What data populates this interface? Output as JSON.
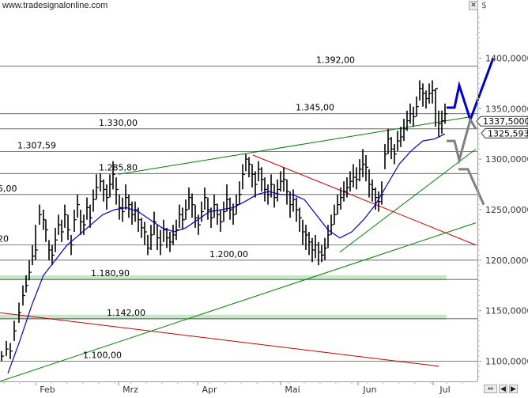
{
  "source_label": "www.tradesignalonline.com",
  "currency_symbol": "$",
  "close_button_glyph": "✕",
  "scroll_buttons": [
    "⇔",
    "◀",
    "▶"
  ],
  "chart_data": {
    "type": "line",
    "title": "",
    "xlabel": "",
    "ylabel": "",
    "x_ticks": [
      "Feb",
      "Mrz",
      "Apr",
      "Mai",
      "Jun",
      "Jul"
    ],
    "y_ticks": [
      "1100,0000",
      "1150,0000",
      "1200,0000",
      "1250,0000",
      "1300,0000",
      "1350,0000",
      "1400,0000"
    ],
    "ylim": [
      1080,
      1445
    ],
    "grid": false,
    "price_markers": [
      {
        "value": "1337,5000",
        "level": 1337.5
      },
      {
        "value": "1325,593",
        "level": 1325.593
      }
    ],
    "horizontal_levels": [
      {
        "label": "1.392,00",
        "value": 1392.0
      },
      {
        "label": "1.345,00",
        "value": 1345.0
      },
      {
        "label": "1.330,00",
        "value": 1330.0
      },
      {
        "label": "1.307,59",
        "value": 1307.59
      },
      {
        "label": "1.285,80",
        "value": 1285.8
      },
      {
        "label": "5,00",
        "value": 1265.0
      },
      {
        "label": "20",
        "value": 1215.0
      },
      {
        "label": "1.200,00",
        "value": 1200.0
      },
      {
        "label": "1.180,90",
        "value": 1180.9
      },
      {
        "label": "1.142,00",
        "value": 1142.0
      },
      {
        "label": "1.100,00",
        "value": 1100.0
      }
    ],
    "highlight_bands": [
      {
        "from": 1180.0,
        "to": 1185.0
      },
      {
        "from": 1141.0,
        "to": 1146.0
      }
    ],
    "trend_lines": [
      {
        "color": "#cc0000",
        "points": [
          [
            0,
            1148
          ],
          [
            555,
            1095
          ]
        ]
      },
      {
        "color": "#cc0000",
        "points": [
          [
            320,
            1304
          ],
          [
            602,
            1215
          ]
        ]
      },
      {
        "color": "#008000",
        "points": [
          [
            0,
            1080
          ],
          [
            602,
            1237
          ]
        ]
      },
      {
        "color": "#008000",
        "points": [
          [
            150,
            1285
          ],
          [
            596,
            1342
          ]
        ]
      },
      {
        "color": "#008000",
        "points": [
          [
            430,
            1208
          ],
          [
            602,
            1310
          ]
        ]
      }
    ],
    "projections": [
      {
        "color": "#0000cc",
        "points": [
          [
            565,
            1351
          ],
          [
            575,
            1351
          ],
          [
            581,
            1373
          ],
          [
            595,
            1339
          ],
          [
            624,
            1400
          ]
        ]
      },
      {
        "color": "#808080",
        "points": [
          [
            565,
            1318
          ],
          [
            575,
            1318
          ],
          [
            581,
            1299
          ],
          [
            595,
            1339
          ],
          [
            602,
            1330
          ]
        ]
      },
      {
        "color": "#808080",
        "points": [
          [
            580,
            1290
          ],
          [
            592,
            1290
          ],
          [
            612,
            1255
          ]
        ]
      }
    ],
    "series": [
      {
        "type": "ohlc",
        "color": "#000000",
        "x": [
          2,
          8,
          13,
          18,
          24,
          29,
          33,
          37,
          41,
          45,
          50,
          55,
          58,
          62,
          66,
          70,
          74,
          78,
          82,
          86,
          90,
          94,
          98,
          102,
          106,
          110,
          114,
          118,
          122,
          127,
          131,
          135,
          139,
          143,
          147,
          151,
          155,
          159,
          163,
          167,
          171,
          175,
          179,
          183,
          187,
          191,
          195,
          199,
          203,
          207,
          211,
          215,
          219,
          223,
          227,
          231,
          235,
          239,
          243,
          247,
          251,
          255,
          259,
          263,
          267,
          271,
          275,
          279,
          283,
          287,
          291,
          295,
          299,
          303,
          307,
          311,
          315,
          319,
          323,
          327,
          331,
          335,
          339,
          343,
          347,
          351,
          355,
          359,
          363,
          367,
          371,
          375,
          379,
          383,
          387,
          391,
          395,
          399,
          403,
          407,
          411,
          415,
          419,
          423,
          427,
          431,
          435,
          439,
          443,
          447,
          451,
          455,
          459,
          463,
          467,
          471,
          475,
          479,
          483,
          487,
          491,
          495,
          499,
          503,
          507,
          511,
          515,
          519,
          523,
          527,
          531,
          535,
          539,
          543,
          547,
          551,
          555,
          559,
          563
        ],
        "close": [
          1105,
          1112,
          1110,
          1130,
          1148,
          1165,
          1175,
          1188,
          1204,
          1210,
          1245,
          1240,
          1230,
          1210,
          1205,
          1220,
          1235,
          1228,
          1245,
          1230,
          1215,
          1240,
          1255,
          1238,
          1235,
          1252,
          1242,
          1260,
          1272,
          1278,
          1270,
          1262,
          1275,
          1285,
          1270,
          1252,
          1248,
          1262,
          1255,
          1245,
          1250,
          1240,
          1232,
          1228,
          1212,
          1225,
          1238,
          1222,
          1215,
          1230,
          1222,
          1218,
          1225,
          1230,
          1245,
          1240,
          1250,
          1262,
          1255,
          1242,
          1235,
          1248,
          1262,
          1250,
          1242,
          1255,
          1245,
          1238,
          1248,
          1260,
          1250,
          1245,
          1255,
          1265,
          1285,
          1300,
          1295,
          1285,
          1275,
          1290,
          1280,
          1270,
          1265,
          1275,
          1262,
          1270,
          1278,
          1280,
          1268,
          1255,
          1260,
          1250,
          1242,
          1228,
          1225,
          1218,
          1210,
          1215,
          1208,
          1205,
          1212,
          1225,
          1235,
          1245,
          1255,
          1262,
          1268,
          1272,
          1278,
          1282,
          1280,
          1290,
          1295,
          1292,
          1275,
          1270,
          1262,
          1258,
          1265,
          1305,
          1320,
          1310,
          1305,
          1318,
          1322,
          1330,
          1338,
          1345,
          1342,
          1352,
          1370,
          1365,
          1360,
          1365,
          1368,
          1370,
          1335,
          1338,
          1345
        ],
        "high": [
          1110,
          1120,
          1118,
          1140,
          1158,
          1175,
          1185,
          1200,
          1215,
          1235,
          1255,
          1250,
          1240,
          1220,
          1215,
          1232,
          1245,
          1240,
          1255,
          1245,
          1225,
          1250,
          1265,
          1250,
          1245,
          1262,
          1255,
          1270,
          1285,
          1286,
          1280,
          1275,
          1285,
          1298,
          1282,
          1265,
          1262,
          1275,
          1265,
          1258,
          1258,
          1252,
          1242,
          1238,
          1225,
          1235,
          1248,
          1235,
          1230,
          1240,
          1232,
          1228,
          1235,
          1240,
          1255,
          1252,
          1260,
          1272,
          1266,
          1255,
          1245,
          1258,
          1272,
          1262,
          1252,
          1265,
          1256,
          1250,
          1258,
          1275,
          1262,
          1256,
          1265,
          1278,
          1295,
          1305,
          1302,
          1295,
          1288,
          1298,
          1292,
          1282,
          1275,
          1285,
          1275,
          1280,
          1288,
          1292,
          1280,
          1268,
          1270,
          1262,
          1252,
          1240,
          1235,
          1228,
          1222,
          1225,
          1218,
          1215,
          1222,
          1235,
          1245,
          1255,
          1265,
          1272,
          1278,
          1282,
          1288,
          1295,
          1292,
          1300,
          1310,
          1304,
          1290,
          1280,
          1272,
          1268,
          1278,
          1315,
          1330,
          1322,
          1315,
          1328,
          1332,
          1340,
          1348,
          1355,
          1352,
          1362,
          1378,
          1375,
          1368,
          1375,
          1378,
          1370,
          1348,
          1348,
          1355
        ],
        "low": [
          1100,
          1105,
          1102,
          1120,
          1138,
          1155,
          1168,
          1180,
          1195,
          1200,
          1235,
          1230,
          1218,
          1200,
          1195,
          1208,
          1225,
          1218,
          1232,
          1220,
          1205,
          1228,
          1242,
          1225,
          1225,
          1240,
          1232,
          1248,
          1260,
          1268,
          1258,
          1250,
          1262,
          1270,
          1255,
          1240,
          1238,
          1250,
          1242,
          1235,
          1238,
          1228,
          1222,
          1215,
          1205,
          1210,
          1225,
          1210,
          1205,
          1218,
          1212,
          1208,
          1215,
          1220,
          1232,
          1230,
          1240,
          1250,
          1242,
          1232,
          1225,
          1238,
          1250,
          1240,
          1232,
          1242,
          1235,
          1228,
          1238,
          1248,
          1240,
          1235,
          1245,
          1255,
          1270,
          1288,
          1282,
          1272,
          1262,
          1278,
          1268,
          1258,
          1255,
          1262,
          1252,
          1258,
          1268,
          1268,
          1255,
          1242,
          1248,
          1238,
          1228,
          1215,
          1210,
          1205,
          1198,
          1202,
          1195,
          1198,
          1200,
          1212,
          1225,
          1235,
          1245,
          1250,
          1258,
          1262,
          1268,
          1272,
          1270,
          1278,
          1282,
          1278,
          1262,
          1258,
          1250,
          1248,
          1255,
          1290,
          1305,
          1300,
          1295,
          1308,
          1312,
          1318,
          1328,
          1335,
          1332,
          1342,
          1358,
          1352,
          1350,
          1355,
          1355,
          1332,
          1322,
          1325,
          1335
        ]
      },
      {
        "name": "",
        "type": "line",
        "color": "#0000cc",
        "x": [
          10,
          25,
          40,
          55,
          70,
          85,
          100,
          115,
          130,
          145,
          160,
          175,
          190,
          205,
          220,
          235,
          250,
          265,
          280,
          295,
          310,
          325,
          340,
          355,
          370,
          385,
          400,
          415,
          430,
          445,
          460,
          475,
          490,
          505,
          520,
          535,
          550,
          563
        ],
        "y": [
          1088,
          1120,
          1155,
          1185,
          1200,
          1215,
          1225,
          1235,
          1245,
          1250,
          1252,
          1248,
          1240,
          1232,
          1228,
          1232,
          1240,
          1248,
          1250,
          1252,
          1258,
          1265,
          1268,
          1265,
          1265,
          1260,
          1245,
          1230,
          1222,
          1228,
          1240,
          1255,
          1275,
          1295,
          1308,
          1318,
          1320,
          1325
        ]
      }
    ]
  }
}
